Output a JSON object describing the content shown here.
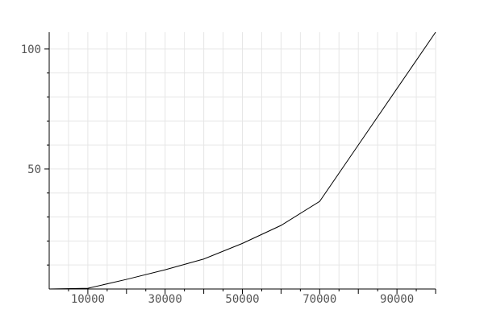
{
  "chart_data": {
    "type": "line",
    "title": "",
    "xlabel": "",
    "ylabel": "",
    "xlim": [
      0,
      100000
    ],
    "ylim": [
      0,
      107
    ],
    "grid": true,
    "legend": "none",
    "x_ticks": [
      10000,
      30000,
      50000,
      70000,
      90000
    ],
    "x_tick_labels": [
      "10000",
      "30000",
      "50000",
      "70000",
      "90000"
    ],
    "y_ticks": [
      50,
      100
    ],
    "y_tick_labels": [
      "50",
      "100"
    ],
    "series": [
      {
        "color": "#000000",
        "x": [
          0,
          10000,
          20000,
          30000,
          40000,
          50000,
          60000,
          70000,
          80000,
          90000,
          100000
        ],
        "y": [
          0,
          0.3,
          4,
          8,
          12.5,
          19,
          26.5,
          36.5,
          60,
          83.5,
          107
        ]
      }
    ]
  },
  "colors": {
    "grid": "#e6e6e6",
    "axis": "#000000",
    "line": "#000000",
    "tick_text": "#555555"
  }
}
